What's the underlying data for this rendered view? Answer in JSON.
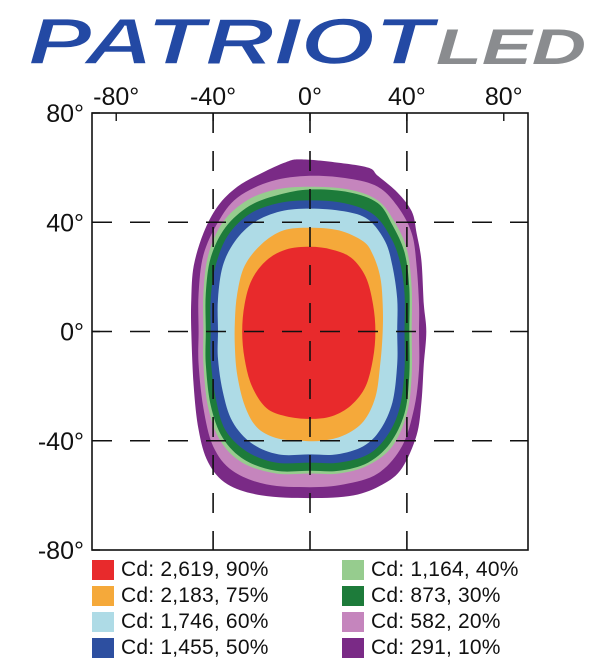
{
  "brand": {
    "logo_primary": "PATRIOT",
    "logo_secondary": "LED",
    "colors": {
      "red": "#d8262e",
      "blue": "#2349a4",
      "grey": "#8a8c8f"
    }
  },
  "chart_data": {
    "type": "isocandela",
    "title": "",
    "x_axis": {
      "range": [
        -90,
        90
      ],
      "ticks": [
        -80,
        -40,
        0,
        40,
        80
      ],
      "tick_labels": [
        "-80°",
        "-40°",
        "0°",
        "40°",
        "80°"
      ],
      "position": "top"
    },
    "y_axis": {
      "range": [
        -80,
        80
      ],
      "ticks": [
        80,
        40,
        0,
        -40,
        -80
      ],
      "tick_labels": [
        "80°",
        "40°",
        "0°",
        "-40°",
        "-80°"
      ],
      "position": "left"
    },
    "gridlines": {
      "style": "dashed",
      "values_x": [
        -40,
        0,
        40
      ],
      "values_y": [
        40,
        0,
        -40
      ]
    },
    "contours": [
      {
        "label": "Cd: 291, 10%",
        "candela": 291,
        "percent": 10,
        "color": "#7a2a86",
        "points": [
          [
            -4,
            63
          ],
          [
            10,
            62
          ],
          [
            24,
            60
          ],
          [
            28,
            57
          ],
          [
            36,
            51
          ],
          [
            42,
            44
          ],
          [
            44,
            36
          ],
          [
            46,
            26
          ],
          [
            47,
            10
          ],
          [
            48,
            0
          ],
          [
            47,
            -12
          ],
          [
            46,
            -26
          ],
          [
            44,
            -38
          ],
          [
            38,
            -50
          ],
          [
            30,
            -56
          ],
          [
            18,
            -60
          ],
          [
            0,
            -61
          ],
          [
            -20,
            -60
          ],
          [
            -34,
            -56
          ],
          [
            -42,
            -48
          ],
          [
            -46,
            -36
          ],
          [
            -48,
            -20
          ],
          [
            -49,
            0
          ],
          [
            -49,
            12
          ],
          [
            -48,
            24
          ],
          [
            -44,
            36
          ],
          [
            -38,
            46
          ],
          [
            -30,
            53
          ],
          [
            -20,
            58
          ],
          [
            -10,
            62
          ]
        ]
      },
      {
        "label": "Cd: 582, 20%",
        "candela": 582,
        "percent": 20,
        "color": "#c585bd",
        "points": [
          [
            0,
            57
          ],
          [
            16,
            56
          ],
          [
            28,
            53
          ],
          [
            36,
            46
          ],
          [
            42,
            36
          ],
          [
            44,
            24
          ],
          [
            45,
            10
          ],
          [
            45,
            0
          ],
          [
            45,
            -14
          ],
          [
            43,
            -28
          ],
          [
            38,
            -42
          ],
          [
            28,
            -52
          ],
          [
            14,
            -56
          ],
          [
            0,
            -57
          ],
          [
            -18,
            -56
          ],
          [
            -32,
            -51
          ],
          [
            -40,
            -42
          ],
          [
            -44,
            -28
          ],
          [
            -46,
            -12
          ],
          [
            -46,
            0
          ],
          [
            -46,
            14
          ],
          [
            -44,
            28
          ],
          [
            -38,
            40
          ],
          [
            -30,
            49
          ],
          [
            -16,
            55
          ]
        ]
      },
      {
        "label": "Cd: 1,164, 40%",
        "candela": 1164,
        "percent": 40,
        "color": "#96cc8e",
        "points": [
          [
            0,
            53
          ],
          [
            16,
            52
          ],
          [
            28,
            48
          ],
          [
            35,
            40
          ],
          [
            40,
            30
          ],
          [
            42,
            16
          ],
          [
            42,
            0
          ],
          [
            42,
            -16
          ],
          [
            40,
            -30
          ],
          [
            34,
            -42
          ],
          [
            24,
            -49
          ],
          [
            12,
            -52
          ],
          [
            0,
            -52
          ],
          [
            -14,
            -52
          ],
          [
            -28,
            -48
          ],
          [
            -37,
            -40
          ],
          [
            -42,
            -28
          ],
          [
            -44,
            -12
          ],
          [
            -44,
            0
          ],
          [
            -44,
            14
          ],
          [
            -42,
            28
          ],
          [
            -36,
            40
          ],
          [
            -26,
            48
          ],
          [
            -14,
            52
          ]
        ]
      },
      {
        "label": "Cd: 873, 30%",
        "candela": 873,
        "percent": 30,
        "color": "#1d7b3a",
        "points": [
          [
            0,
            52
          ],
          [
            16,
            51
          ],
          [
            28,
            47
          ],
          [
            34,
            39
          ],
          [
            39,
            29
          ],
          [
            41,
            16
          ],
          [
            41,
            0
          ],
          [
            41,
            -16
          ],
          [
            39,
            -30
          ],
          [
            33,
            -41
          ],
          [
            24,
            -48
          ],
          [
            12,
            -51
          ],
          [
            0,
            -51
          ],
          [
            -14,
            -51
          ],
          [
            -27,
            -47
          ],
          [
            -36,
            -39
          ],
          [
            -41,
            -27
          ],
          [
            -43,
            -12
          ],
          [
            -43,
            0
          ],
          [
            -43,
            14
          ],
          [
            -41,
            27
          ],
          [
            -35,
            38
          ],
          [
            -25,
            46
          ],
          [
            -13,
            50
          ]
        ]
      },
      {
        "label": "Cd: 1,455, 50%",
        "candela": 1455,
        "percent": 50,
        "color": "#2d4fa0",
        "points": [
          [
            0,
            48
          ],
          [
            14,
            47
          ],
          [
            26,
            43
          ],
          [
            33,
            35
          ],
          [
            37,
            26
          ],
          [
            39,
            14
          ],
          [
            39,
            0
          ],
          [
            39,
            -14
          ],
          [
            37,
            -28
          ],
          [
            32,
            -38
          ],
          [
            24,
            -45
          ],
          [
            12,
            -48
          ],
          [
            0,
            -48
          ],
          [
            -14,
            -48
          ],
          [
            -26,
            -44
          ],
          [
            -35,
            -36
          ],
          [
            -39,
            -24
          ],
          [
            -41,
            -10
          ],
          [
            -41,
            0
          ],
          [
            -41,
            12
          ],
          [
            -39,
            24
          ],
          [
            -34,
            35
          ],
          [
            -25,
            43
          ],
          [
            -13,
            47
          ]
        ]
      },
      {
        "label": "Cd: 1,746, 60%",
        "candela": 1746,
        "percent": 60,
        "color": "#aedbe6",
        "points": [
          [
            0,
            45
          ],
          [
            14,
            44
          ],
          [
            24,
            41
          ],
          [
            31,
            33
          ],
          [
            34,
            24
          ],
          [
            36,
            12
          ],
          [
            36,
            0
          ],
          [
            36,
            -12
          ],
          [
            34,
            -26
          ],
          [
            29,
            -36
          ],
          [
            22,
            -42
          ],
          [
            11,
            -45
          ],
          [
            0,
            -45
          ],
          [
            -13,
            -45
          ],
          [
            -24,
            -41
          ],
          [
            -32,
            -33
          ],
          [
            -36,
            -22
          ],
          [
            -38,
            -10
          ],
          [
            -38,
            0
          ],
          [
            -38,
            12
          ],
          [
            -36,
            24
          ],
          [
            -31,
            33
          ],
          [
            -23,
            40
          ],
          [
            -12,
            44
          ]
        ]
      },
      {
        "label": "Cd: 2,183, 75%",
        "candela": 2183,
        "percent": 75,
        "color": "#f5a93a",
        "points": [
          [
            0,
            38
          ],
          [
            12,
            37
          ],
          [
            22,
            33
          ],
          [
            26,
            28
          ],
          [
            29,
            20
          ],
          [
            30,
            10
          ],
          [
            30,
            0
          ],
          [
            29,
            -12
          ],
          [
            27,
            -24
          ],
          [
            22,
            -33
          ],
          [
            14,
            -38
          ],
          [
            5,
            -40
          ],
          [
            -4,
            -40
          ],
          [
            -14,
            -39
          ],
          [
            -22,
            -35
          ],
          [
            -27,
            -27
          ],
          [
            -30,
            -16
          ],
          [
            -31,
            -6
          ],
          [
            -31,
            4
          ],
          [
            -30,
            14
          ],
          [
            -27,
            24
          ],
          [
            -20,
            32
          ],
          [
            -11,
            37
          ]
        ]
      },
      {
        "label": "Cd: 2,619, 90%",
        "candela": 2619,
        "percent": 90,
        "color": "#e82a2c",
        "points": [
          [
            0,
            31
          ],
          [
            9,
            30
          ],
          [
            17,
            27
          ],
          [
            23,
            20
          ],
          [
            26,
            10
          ],
          [
            27,
            0
          ],
          [
            26,
            -10
          ],
          [
            23,
            -20
          ],
          [
            17,
            -27
          ],
          [
            9,
            -31
          ],
          [
            0,
            -32
          ],
          [
            -10,
            -31
          ],
          [
            -18,
            -28
          ],
          [
            -24,
            -20
          ],
          [
            -27,
            -10
          ],
          [
            -28,
            0
          ],
          [
            -27,
            10
          ],
          [
            -24,
            19
          ],
          [
            -18,
            26
          ],
          [
            -10,
            30
          ]
        ]
      }
    ],
    "legend": {
      "position": "bottom",
      "items": [
        {
          "label": "Cd: 2,619, 90%",
          "color": "#e82a2c"
        },
        {
          "label": "Cd: 1,164, 40%",
          "color": "#96cc8e"
        },
        {
          "label": "Cd: 2,183, 75%",
          "color": "#f5a93a"
        },
        {
          "label": "Cd: 873, 30%",
          "color": "#1d7b3a"
        },
        {
          "label": "Cd: 1,746, 60%",
          "color": "#aedbe6"
        },
        {
          "label": "Cd: 582, 20%",
          "color": "#c585bd"
        },
        {
          "label": "Cd: 1,455, 50%",
          "color": "#2d4fa0"
        },
        {
          "label": "Cd: 291, 10%",
          "color": "#7a2a86"
        }
      ]
    }
  }
}
